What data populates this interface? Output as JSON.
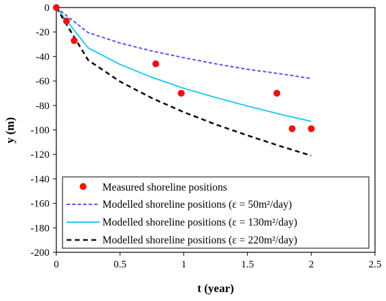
{
  "chart_data": {
    "type": "line",
    "xlabel": "t (year)",
    "ylabel": "y (m)",
    "xlim": [
      0,
      2.5
    ],
    "ylim": [
      -200,
      0
    ],
    "xticks": [
      0,
      0.5,
      1,
      1.5,
      2,
      2.5
    ],
    "xtick_labels": [
      "0",
      "0.5",
      "1",
      "1.5",
      "2",
      "2.5"
    ],
    "yticks": [
      0,
      -20,
      -40,
      -60,
      -80,
      -100,
      -120,
      -140,
      -160,
      -180,
      -200
    ],
    "ytick_labels": [
      "0",
      "-20",
      "-40",
      "-60",
      "-80",
      "-100",
      "-120",
      "-140",
      "-160",
      "-180",
      "-200"
    ],
    "grid": false,
    "legend_position": "bottom-left",
    "series": [
      {
        "name": "Measured shoreline positions",
        "type": "scatter",
        "color": "#ee1111",
        "x": [
          0,
          0.08,
          0.14,
          0.78,
          0.98,
          1.73,
          1.85,
          2.0
        ],
        "y": [
          0,
          -11,
          -27,
          -46,
          -70,
          -70,
          -99,
          -99
        ]
      },
      {
        "name": "Modelled shoreline positions (ε = 50m²/day)",
        "type": "line",
        "style": "dashed",
        "color": "#5555ee",
        "x": [
          0,
          0.25,
          0.5,
          0.75,
          1.0,
          1.25,
          1.5,
          1.75,
          2.0
        ],
        "y": [
          0,
          -20.5,
          -29,
          -35.5,
          -41,
          -46,
          -50.5,
          -54,
          -58
        ]
      },
      {
        "name": "Modelled shoreline positions (ε = 130m²/day)",
        "type": "line",
        "style": "solid",
        "color": "#22ccee",
        "x": [
          0,
          0.25,
          0.5,
          0.75,
          1.0,
          1.25,
          1.5,
          1.75,
          2.0
        ],
        "y": [
          0,
          -33,
          -46.5,
          -57,
          -66,
          -73.5,
          -80.5,
          -87,
          -93
        ]
      },
      {
        "name": "Modelled shoreline positions (ε = 220m²/day)",
        "type": "line",
        "style": "dashed",
        "color": "#111111",
        "x": [
          0,
          0.25,
          0.5,
          0.75,
          1.0,
          1.25,
          1.5,
          1.75,
          2.0
        ],
        "y": [
          0,
          -43,
          -60.5,
          -74,
          -85.5,
          -95.5,
          -104.5,
          -113,
          -121
        ]
      }
    ]
  }
}
